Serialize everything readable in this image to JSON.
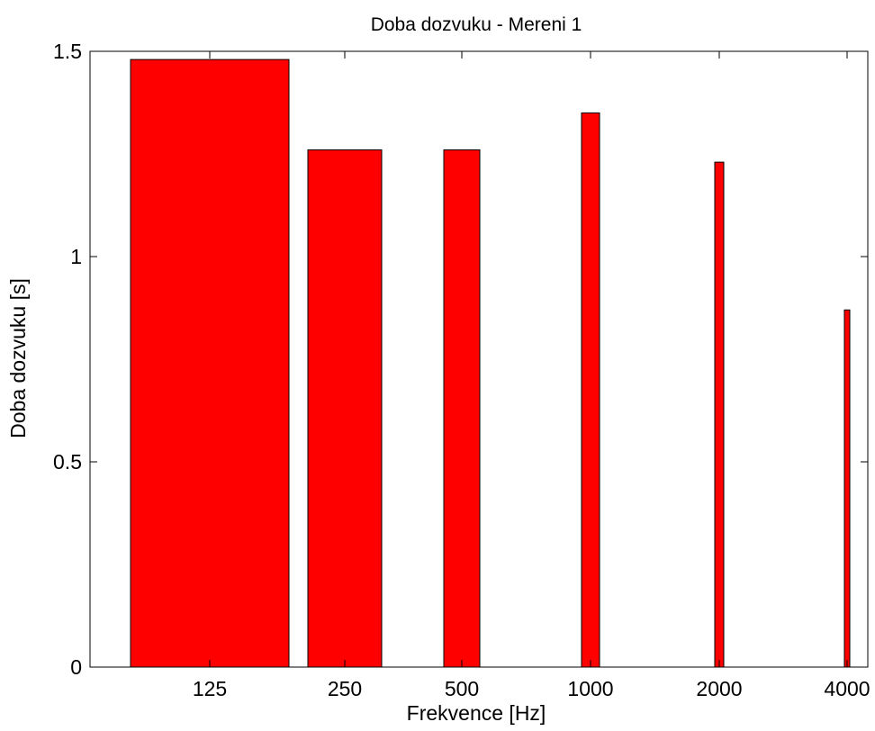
{
  "chart_data": {
    "type": "bar",
    "title": "Doba dozvuku - Mereni 1",
    "xlabel": "Frekvence [Hz]",
    "ylabel": "Doba dozvuku [s]",
    "categories": [
      "125",
      "250",
      "500",
      "1000",
      "2000",
      "4000"
    ],
    "x": [
      125,
      250,
      500,
      1000,
      2000,
      4000
    ],
    "values": [
      1.48,
      1.26,
      1.26,
      1.35,
      1.23,
      0.87
    ],
    "x_scale": "log",
    "ylim": [
      0,
      1.5
    ],
    "yticks": [
      "0",
      "0.5",
      "1",
      "1.5"
    ],
    "bar_color": "#ff0000",
    "edge_color": "#000000",
    "grid": false,
    "legend": "none"
  }
}
